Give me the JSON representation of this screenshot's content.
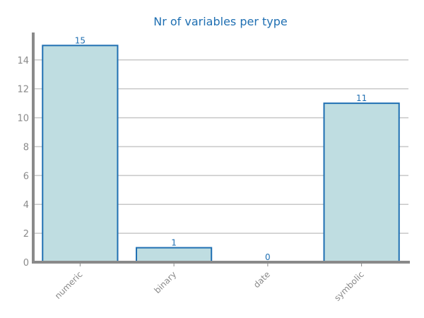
{
  "chart_data": {
    "type": "bar",
    "title": "Nr of variables per type",
    "xlabel": "",
    "ylabel": "",
    "categories": [
      "numeric",
      "binary",
      "date",
      "symbolic"
    ],
    "values": [
      15,
      1,
      0,
      11
    ],
    "data_labels": [
      "15",
      "1",
      "0",
      "11"
    ],
    "ylim": [
      0,
      15.8
    ],
    "yticks": [
      0,
      2,
      4,
      6,
      8,
      10,
      12,
      14
    ],
    "ytick_labels": [
      "0",
      "2",
      "4",
      "6",
      "8",
      "10",
      "12",
      "14"
    ],
    "grid": "horizontal",
    "legend": "none",
    "colors": {
      "bar_fill": "#bfdde1",
      "bar_edge": "#1f6fb2",
      "title": "#1f6fb2",
      "grid": "#c8c8c8",
      "axis": "#8a8a8a",
      "tick_text": "#8a8a8a",
      "data_label": "#1f6fb2"
    }
  }
}
